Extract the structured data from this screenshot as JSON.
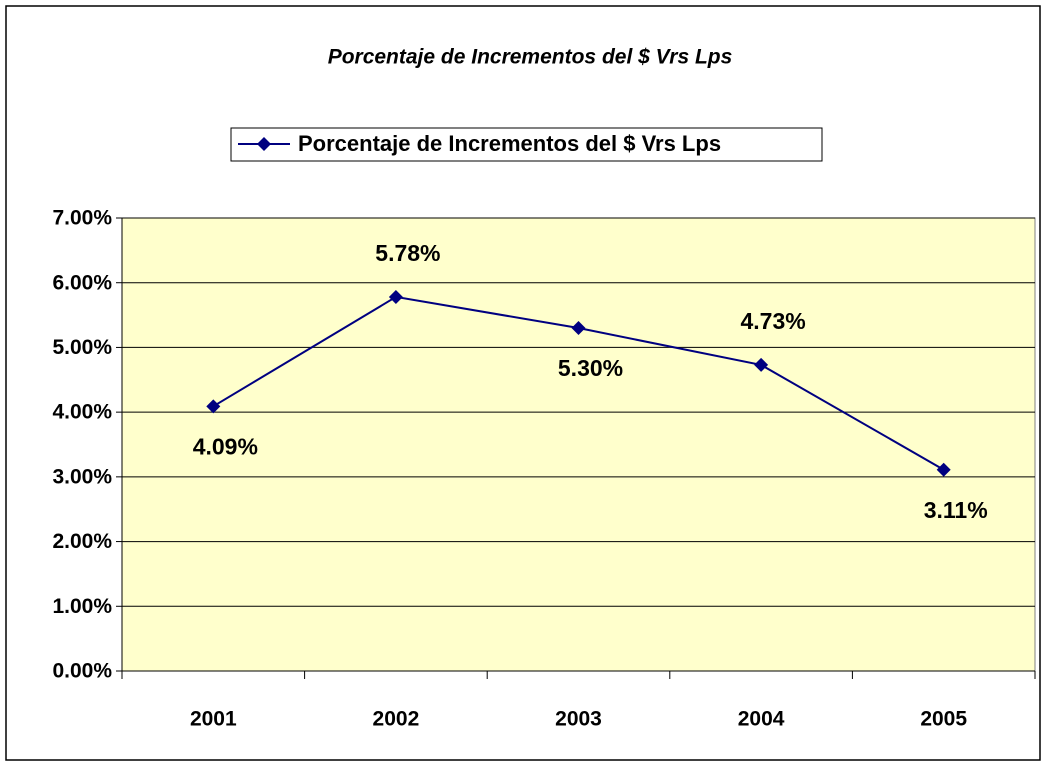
{
  "chart_data": {
    "type": "line",
    "title": "Porcentaje de Incrementos del $ Vrs Lps",
    "categories": [
      "2001",
      "2002",
      "2003",
      "2004",
      "2005"
    ],
    "series": [
      {
        "name": "Porcentaje de Incrementos del $ Vrs Lps",
        "color": "#000080",
        "values": [
          4.09,
          5.78,
          5.3,
          4.73,
          3.11
        ],
        "value_labels": [
          "4.09%",
          "5.78%",
          "5.30%",
          "4.73%",
          "3.11%"
        ]
      }
    ],
    "ylim": [
      0,
      7
    ],
    "yticks": [
      {
        "value": 0,
        "label": "0.00%"
      },
      {
        "value": 1,
        "label": "1.00%"
      },
      {
        "value": 2,
        "label": "2.00%"
      },
      {
        "value": 3,
        "label": "3.00%"
      },
      {
        "value": 4,
        "label": "4.00%"
      },
      {
        "value": 5,
        "label": "5.00%"
      },
      {
        "value": 6,
        "label": "6.00%"
      },
      {
        "value": 7,
        "label": "7.00%"
      }
    ],
    "grid": true,
    "legend": "top",
    "plot_background": "#FFFFCC"
  }
}
